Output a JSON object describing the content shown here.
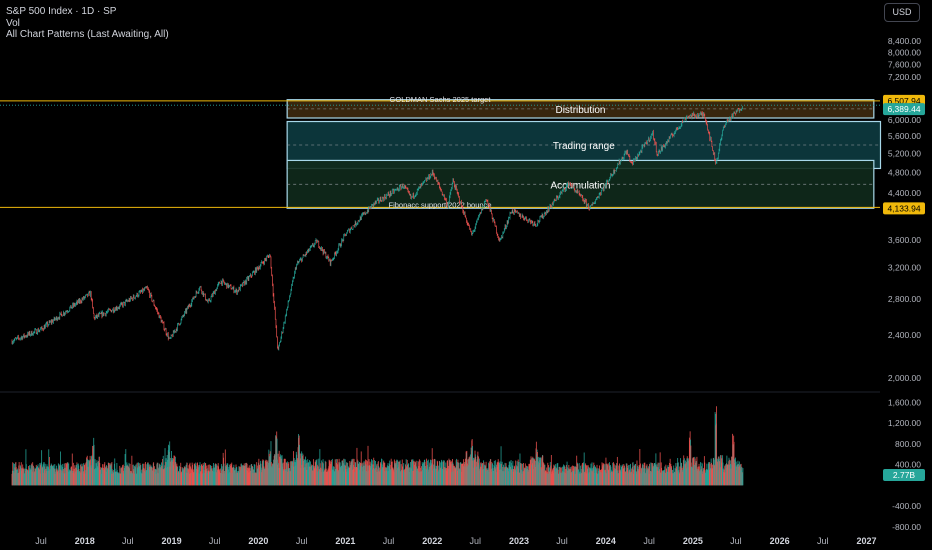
{
  "header": {
    "symbol_line": "S&P 500 Index · 1D · SP",
    "volume_label": "Vol",
    "indicator_label": "All Chart Patterns (Last Awaiting, All)",
    "currency_button": "USD"
  },
  "colors": {
    "background": "#000000",
    "up": "#26a69a",
    "down": "#ef5350",
    "level_line": "#f0b90b",
    "box_border": "#a8d8ea",
    "distribution_fill": "#3d2a10",
    "trading_range_fill": "#0d3b40",
    "accumulation_fill": "#0f2a1c",
    "axis_text": "#b2b5be"
  },
  "chart_data": [
    {
      "type": "candlestick",
      "title": "S&P 500 Index · 1D · SP",
      "x_axis": {
        "ticks": [
          "Jul",
          "2018",
          "Jul",
          "2019",
          "Jul",
          "2020",
          "Jul",
          "2021",
          "Jul",
          "2022",
          "Jul",
          "2023",
          "Jul",
          "2024",
          "Jul",
          "2025",
          "Jul",
          "2026",
          "Jul",
          "2027"
        ],
        "range": [
          "2017-03",
          "2027-05"
        ]
      },
      "y_axis": {
        "scale": "log",
        "ticks": [
          "8,400.00",
          "8,000.00",
          "7,600.00",
          "7,200.00",
          "6,400.00",
          "6,000.00",
          "5,600.00",
          "5,200.00",
          "4,800.00",
          "4,400.00",
          "3,600.00",
          "3,200.00",
          "2,800.00",
          "2,400.00",
          "2,000.00"
        ],
        "range": [
          1900,
          8800
        ]
      },
      "price_path": [
        [
          "2017-03-01",
          2340
        ],
        [
          "2017-07-01",
          2460
        ],
        [
          "2018-01-26",
          2870
        ],
        [
          "2018-02-08",
          2580
        ],
        [
          "2018-06-01",
          2720
        ],
        [
          "2018-09-20",
          2930
        ],
        [
          "2018-12-24",
          2350
        ],
        [
          "2019-04-30",
          2950
        ],
        [
          "2019-06-03",
          2750
        ],
        [
          "2019-07-26",
          3020
        ],
        [
          "2019-10-02",
          2890
        ],
        [
          "2020-02-19",
          3386
        ],
        [
          "2020-03-23",
          2237
        ],
        [
          "2020-06-08",
          3230
        ],
        [
          "2020-09-02",
          3580
        ],
        [
          "2020-10-30",
          3270
        ],
        [
          "2021-01-04",
          3700
        ],
        [
          "2021-05-01",
          4200
        ],
        [
          "2021-09-02",
          4540
        ],
        [
          "2021-10-04",
          4300
        ],
        [
          "2022-01-03",
          4796
        ],
        [
          "2022-03-08",
          4170
        ],
        [
          "2022-03-29",
          4630
        ],
        [
          "2022-06-16",
          3667
        ],
        [
          "2022-08-16",
          4305
        ],
        [
          "2022-10-12",
          3577
        ],
        [
          "2022-12-01",
          4080
        ],
        [
          "2023-03-13",
          3850
        ],
        [
          "2023-07-31",
          4588
        ],
        [
          "2023-10-27",
          4117
        ],
        [
          "2024-03-28",
          5254
        ],
        [
          "2024-04-19",
          4967
        ],
        [
          "2024-07-16",
          5667
        ],
        [
          "2024-08-05",
          5186
        ],
        [
          "2024-12-06",
          6090
        ],
        [
          "2025-02-19",
          6144
        ],
        [
          "2025-04-08",
          4982
        ],
        [
          "2025-05-13",
          5890
        ],
        [
          "2025-07-31",
          6389
        ]
      ],
      "last_price": 6389.44,
      "last_price_label": "6,389.44",
      "levels": [
        {
          "name": "GOLDMAN Sachs 2025 target",
          "value": 6507.94,
          "label": "6,507.94"
        },
        {
          "name": "Fibonacc support/2022 bounce",
          "value": 4133.94,
          "label": "4,133.94"
        }
      ],
      "zones": [
        {
          "label": "Distribution",
          "start": "2020-05-01",
          "end": "2027-02-01",
          "low": 6050,
          "high": 6540
        },
        {
          "label": "Trading range",
          "start": "2020-05-01",
          "end": "2027-03-01",
          "low": 4880,
          "high": 5960
        },
        {
          "label": "Accumulation",
          "start": "2020-05-01",
          "end": "2027-02-01",
          "low": 4120,
          "high": 5050
        }
      ]
    },
    {
      "type": "bar",
      "title": "Vol",
      "y_axis": {
        "ticks": [
          "1,600.00",
          "1,200.00",
          "800.00",
          "400.00",
          "-400.00",
          "-800.00"
        ],
        "range": [
          -900,
          1800
        ]
      },
      "last_value_label": "2.77B",
      "spikes": [
        [
          "2018-02-06",
          980
        ],
        [
          "2018-12-21",
          900
        ],
        [
          "2020-03-16",
          1150
        ],
        [
          "2020-06-19",
          1020
        ],
        [
          "2022-06-17",
          920
        ],
        [
          "2023-03-17",
          850
        ],
        [
          "2024-12-20",
          1050
        ],
        [
          "2025-04-07",
          1550
        ],
        [
          "2025-06-20",
          1050
        ]
      ]
    }
  ]
}
